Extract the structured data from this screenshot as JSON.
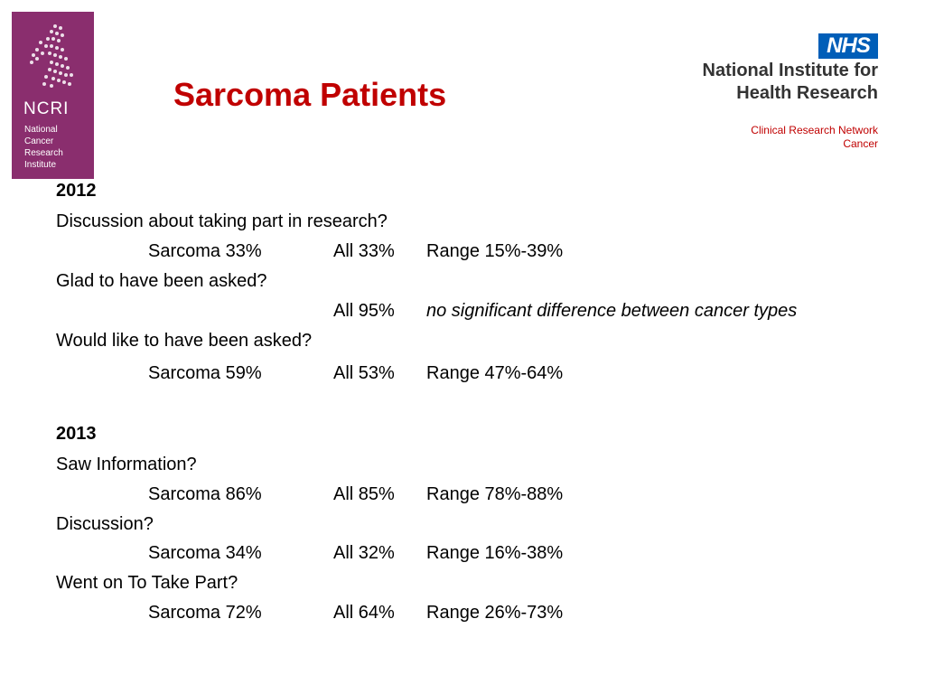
{
  "logos": {
    "ncri": {
      "name": "NCRI",
      "full_name_lines": [
        "National",
        "Cancer",
        "Research",
        "Institute"
      ]
    },
    "nhs": {
      "badge": "NHS",
      "org_lines": [
        "National Institute for",
        "Health Research"
      ],
      "network_lines": [
        "Clinical Research Network",
        "Cancer"
      ]
    }
  },
  "title": "Sarcoma Patients",
  "section_2012": {
    "year": "2012",
    "q1": "Discussion about taking part in research?",
    "r1": {
      "sarcoma": "Sarcoma 33%",
      "all": "All 33%",
      "range": "Range 15%-39%"
    },
    "q2": "Glad to have been asked?",
    "r2": {
      "all": "All 95%",
      "note": "no significant difference between cancer types"
    },
    "q3": "Would like to have been asked?",
    "r3": {
      "sarcoma": "Sarcoma 59%",
      "all": "All 53%",
      "range": "Range 47%-64%"
    }
  },
  "section_2013": {
    "year": "2013",
    "q1": "Saw Information?",
    "r1": {
      "sarcoma": "Sarcoma 86%",
      "all": "All 85%",
      "range": "Range 78%-88%"
    },
    "q2": "Discussion?",
    "r2": {
      "sarcoma": "Sarcoma 34%",
      "all": "All 32%",
      "range": "Range 16%-38%"
    },
    "q3": "Went on To Take Part?",
    "r3": {
      "sarcoma": "Sarcoma 72%",
      "all": "All 64%",
      "range": "Range 26%-73%"
    }
  },
  "colors": {
    "title": "#c00000",
    "ncri_purple": "#8a2e6e",
    "nhs_blue": "#005eb8"
  }
}
